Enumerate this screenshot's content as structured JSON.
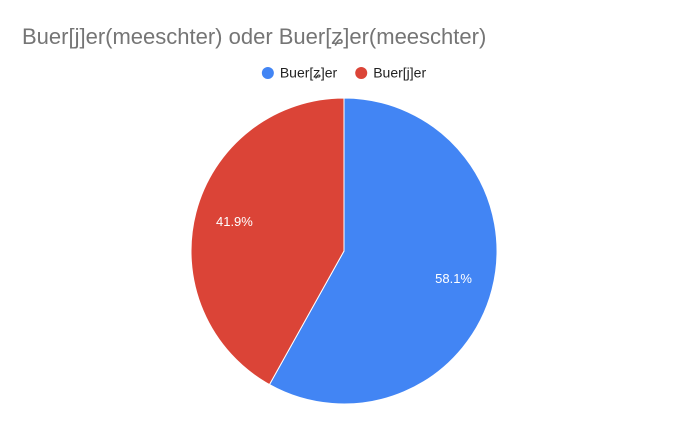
{
  "chart_data": {
    "type": "pie",
    "title": "Buer[j]er(meeschter) oder Buer[ʑ]er(meeschter)",
    "categories": [
      "Buer[ʑ]er",
      "Buer[j]er"
    ],
    "values": [
      58.1,
      41.9
    ],
    "value_labels": [
      "58.1%",
      "41.9%"
    ],
    "colors": [
      "#4285f4",
      "#db4437"
    ],
    "legend": "top"
  }
}
